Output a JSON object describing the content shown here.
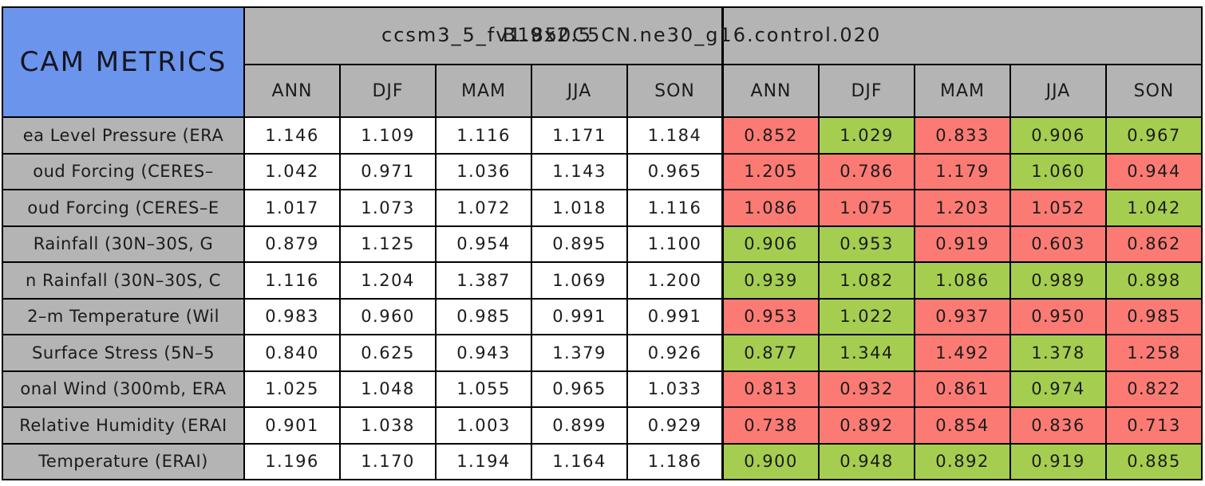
{
  "chart_data": {
    "type": "table",
    "corner_label": "CAM METRICS",
    "column_group_titles": [
      "ccsm3_5_fv1.9x2.5",
      "B1850C5CN.ne30_g16.control.020"
    ],
    "season_columns": [
      "ANN",
      "DJF",
      "MAM",
      "JJA",
      "SON"
    ],
    "colors": {
      "corner_bg": "#6B94EC",
      "header_bg": "#B4B4B4",
      "red_cell": "#FB7B74",
      "green_cell": "#A5CE50",
      "border": "#000000"
    },
    "rows": [
      {
        "label": "ea Level Pressure (ERA",
        "case1_values": [
          "1.146",
          "1.109",
          "1.116",
          "1.171",
          "1.184"
        ],
        "case2_values": [
          "0.852",
          "1.029",
          "0.833",
          "0.906",
          "0.967"
        ],
        "case2_colors": [
          "red",
          "green",
          "red",
          "green",
          "green"
        ]
      },
      {
        "label": "oud Forcing (CERES–",
        "case1_values": [
          "1.042",
          "0.971",
          "1.036",
          "1.143",
          "0.965"
        ],
        "case2_values": [
          "1.205",
          "0.786",
          "1.179",
          "1.060",
          "0.944"
        ],
        "case2_colors": [
          "red",
          "red",
          "red",
          "green",
          "red"
        ]
      },
      {
        "label": "oud Forcing (CERES–E",
        "case1_values": [
          "1.017",
          "1.073",
          "1.072",
          "1.018",
          "1.116"
        ],
        "case2_values": [
          "1.086",
          "1.075",
          "1.203",
          "1.052",
          "1.042"
        ],
        "case2_colors": [
          "red",
          "red",
          "red",
          "red",
          "green"
        ]
      },
      {
        "label": "Rainfall (30N–30S, G",
        "case1_values": [
          "0.879",
          "1.125",
          "0.954",
          "0.895",
          "1.100"
        ],
        "case2_values": [
          "0.906",
          "0.953",
          "0.919",
          "0.603",
          "0.862"
        ],
        "case2_colors": [
          "green",
          "green",
          "red",
          "red",
          "red"
        ]
      },
      {
        "label": "n Rainfall (30N–30S, C",
        "case1_values": [
          "1.116",
          "1.204",
          "1.387",
          "1.069",
          "1.200"
        ],
        "case2_values": [
          "0.939",
          "1.082",
          "1.086",
          "0.989",
          "0.898"
        ],
        "case2_colors": [
          "green",
          "green",
          "green",
          "green",
          "green"
        ]
      },
      {
        "label": "2–m Temperature (Wil",
        "case1_values": [
          "0.983",
          "0.960",
          "0.985",
          "0.991",
          "0.991"
        ],
        "case2_values": [
          "0.953",
          "1.022",
          "0.937",
          "0.950",
          "0.985"
        ],
        "case2_colors": [
          "red",
          "green",
          "red",
          "red",
          "red"
        ]
      },
      {
        "label": "Surface Stress (5N–5",
        "case1_values": [
          "0.840",
          "0.625",
          "0.943",
          "1.379",
          "0.926"
        ],
        "case2_values": [
          "0.877",
          "1.344",
          "1.492",
          "1.378",
          "1.258"
        ],
        "case2_colors": [
          "green",
          "green",
          "red",
          "green",
          "red"
        ]
      },
      {
        "label": "onal Wind (300mb, ERA",
        "case1_values": [
          "1.025",
          "1.048",
          "1.055",
          "0.965",
          "1.033"
        ],
        "case2_values": [
          "0.813",
          "0.932",
          "0.861",
          "0.974",
          "0.822"
        ],
        "case2_colors": [
          "red",
          "red",
          "red",
          "green",
          "red"
        ]
      },
      {
        "label": "Relative Humidity (ERAI",
        "case1_values": [
          "0.901",
          "1.038",
          "1.003",
          "0.899",
          "0.929"
        ],
        "case2_values": [
          "0.738",
          "0.892",
          "0.854",
          "0.836",
          "0.713"
        ],
        "case2_colors": [
          "red",
          "red",
          "red",
          "red",
          "red"
        ]
      },
      {
        "label": "Temperature (ERAI)",
        "case1_values": [
          "1.196",
          "1.170",
          "1.194",
          "1.164",
          "1.186"
        ],
        "case2_values": [
          "0.900",
          "0.948",
          "0.892",
          "0.919",
          "0.885"
        ],
        "case2_colors": [
          "green",
          "green",
          "green",
          "green",
          "green"
        ]
      }
    ]
  }
}
